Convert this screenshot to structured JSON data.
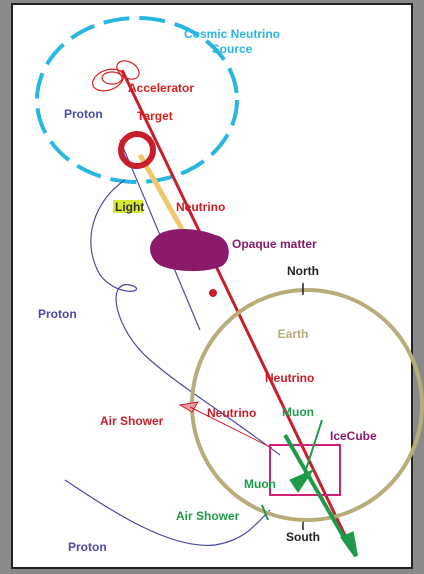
{
  "labels": {
    "source": [
      "Cosmic Neutrino",
      "Source"
    ],
    "accelerator": "Accelerator",
    "proton_source": "Proton",
    "target": "Target",
    "light": "Light",
    "neutrino_upper": "Neutrino",
    "opaque": "Opaque matter",
    "north": "North",
    "proton_left": "Proton",
    "earth": "Earth",
    "neutrino_earth": "Neutrino",
    "air_shower_left": "Air Shower",
    "neutrino_shower": "Neutrino",
    "muon_upper": "Muon",
    "icecube": "IceCube",
    "muon_lower": "Muon",
    "air_shower_bottom": "Air Shower",
    "south": "South",
    "proton_bottom": "Proton"
  }
}
